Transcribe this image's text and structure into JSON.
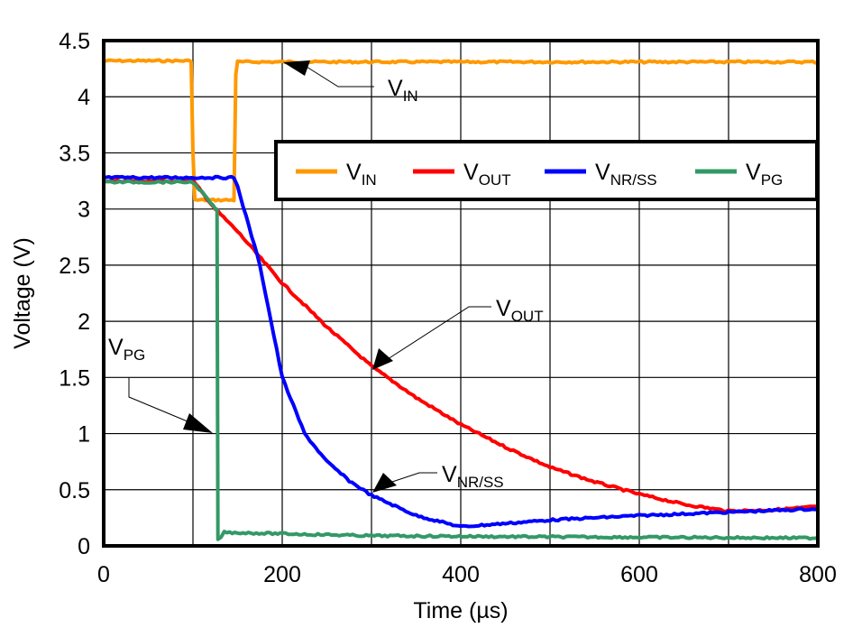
{
  "chart_data": {
    "type": "line",
    "xlabel": "Time (µs)",
    "ylabel": "Voltage (V)",
    "xlim": [
      0,
      800
    ],
    "ylim": [
      0,
      4.5
    ],
    "xticks": [
      "0",
      "200",
      "400",
      "600",
      "800"
    ],
    "yticks": [
      "0",
      "0.5",
      "1",
      "1.5",
      "2",
      "2.5",
      "3",
      "3.5",
      "4",
      "4.5"
    ],
    "grid": true,
    "legend_position": "upper-right",
    "series": [
      {
        "name": "V",
        "sub": "IN",
        "color": "#FF9900",
        "x": [
          0,
          98,
          100,
          102,
          146,
          148,
          150,
          800
        ],
        "y": [
          4.32,
          4.32,
          3.5,
          3.08,
          3.08,
          4.2,
          4.31,
          4.31
        ]
      },
      {
        "name": "V",
        "sub": "OUT",
        "color": "#FF0000",
        "x": [
          0,
          100,
          125,
          150,
          200,
          250,
          300,
          350,
          400,
          450,
          500,
          550,
          600,
          650,
          700,
          750,
          800
        ],
        "y": [
          3.25,
          3.25,
          3.0,
          2.8,
          2.34,
          1.95,
          1.6,
          1.32,
          1.08,
          0.88,
          0.7,
          0.57,
          0.46,
          0.37,
          0.31,
          0.32,
          0.35
        ]
      },
      {
        "name": "V",
        "sub": "NR/SS",
        "color": "#0000FF",
        "x": [
          0,
          146,
          150,
          175,
          200,
          225,
          250,
          275,
          300,
          350,
          400,
          450,
          500,
          600,
          700,
          800
        ],
        "y": [
          3.28,
          3.28,
          3.2,
          2.5,
          1.5,
          1.0,
          0.75,
          0.58,
          0.45,
          0.27,
          0.17,
          0.2,
          0.23,
          0.27,
          0.3,
          0.33
        ]
      },
      {
        "name": "V",
        "sub": "PG",
        "color": "#339966",
        "x": [
          0,
          100,
          110,
          125,
          127,
          128,
          135,
          300,
          500,
          800
        ],
        "y": [
          3.24,
          3.24,
          3.15,
          3.0,
          3.0,
          0.05,
          0.12,
          0.09,
          0.08,
          0.07
        ]
      }
    ],
    "annotations": [
      {
        "main": "V",
        "sub": "IN"
      },
      {
        "main": "V",
        "sub": "OUT"
      },
      {
        "main": "V",
        "sub": "NR/SS"
      },
      {
        "main": "V",
        "sub": "PG"
      }
    ]
  }
}
